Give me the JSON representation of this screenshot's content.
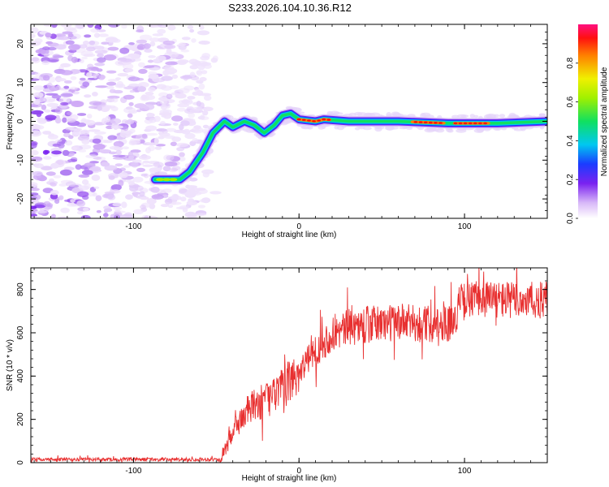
{
  "title": "S233.2026.104.10.36.R12",
  "colors": {
    "snr_line": "#e83030",
    "noise": "#8a3cf0",
    "frame": "#000000"
  },
  "chart_data": [
    {
      "type": "heatmap",
      "name": "spectrogram",
      "xlabel": "Height of straight line (km)",
      "ylabel": "Frequency (Hz)",
      "xlim": [
        -162,
        150
      ],
      "ylim": [
        -25,
        25
      ],
      "xticks": [
        -100,
        0,
        100
      ],
      "xtick_labels": [
        "-100",
        "0",
        "100"
      ],
      "yticks": [
        -20,
        -10,
        0,
        10,
        20
      ],
      "ytick_labels": [
        "-20",
        "-10",
        "0",
        "10",
        "20"
      ],
      "noise_region_x": [
        -162,
        -55
      ],
      "signal_track": [
        {
          "x": -87,
          "y": -15
        },
        {
          "x": -72,
          "y": -15
        },
        {
          "x": -66,
          "y": -13
        },
        {
          "x": -58,
          "y": -8
        },
        {
          "x": -52,
          "y": -3
        },
        {
          "x": -45,
          "y": 0
        },
        {
          "x": -40,
          "y": -1.5
        },
        {
          "x": -33,
          "y": 0
        },
        {
          "x": -27,
          "y": -1
        },
        {
          "x": -21,
          "y": -3
        },
        {
          "x": -15,
          "y": -1
        },
        {
          "x": -10,
          "y": 1.5
        },
        {
          "x": -5,
          "y": 2
        },
        {
          "x": 0,
          "y": 0.5
        },
        {
          "x": 10,
          "y": 0
        },
        {
          "x": 15,
          "y": 0.5
        },
        {
          "x": 30,
          "y": 0
        },
        {
          "x": 60,
          "y": 0
        },
        {
          "x": 90,
          "y": -0.5
        },
        {
          "x": 120,
          "y": -0.5
        },
        {
          "x": 150,
          "y": 0
        }
      ],
      "colorbar": {
        "label": "Normalized spectral amplitude",
        "range": [
          0,
          1
        ],
        "ticks": [
          0.0,
          0.2,
          0.4,
          0.6,
          0.8
        ],
        "tick_labels": [
          "0.0",
          "0.2",
          "0.4",
          "0.6",
          "0.8"
        ]
      }
    },
    {
      "type": "line",
      "name": "snr",
      "xlabel": "Height of straight line (km)",
      "ylabel": "SNR (10 * v/v)",
      "xlim": [
        -162,
        150
      ],
      "ylim": [
        0,
        900
      ],
      "xticks": [
        -100,
        0,
        100
      ],
      "xtick_labels": [
        "-100",
        "0",
        "100"
      ],
      "yticks": [
        0,
        200,
        400,
        600,
        800
      ],
      "ytick_labels": [
        "0",
        "200",
        "400",
        "600",
        "800"
      ],
      "series_trend": [
        {
          "x": -162,
          "y": 15
        },
        {
          "x": -48,
          "y": 15
        },
        {
          "x": -44,
          "y": 70
        },
        {
          "x": -38,
          "y": 170
        },
        {
          "x": -30,
          "y": 250
        },
        {
          "x": -20,
          "y": 290
        },
        {
          "x": -10,
          "y": 340
        },
        {
          "x": 0,
          "y": 420
        },
        {
          "x": 10,
          "y": 520
        },
        {
          "x": 20,
          "y": 590
        },
        {
          "x": 30,
          "y": 625
        },
        {
          "x": 45,
          "y": 640
        },
        {
          "x": 60,
          "y": 650
        },
        {
          "x": 75,
          "y": 640
        },
        {
          "x": 94,
          "y": 650
        },
        {
          "x": 97,
          "y": 740
        },
        {
          "x": 110,
          "y": 760
        },
        {
          "x": 130,
          "y": 750
        },
        {
          "x": 150,
          "y": 750
        }
      ]
    }
  ]
}
